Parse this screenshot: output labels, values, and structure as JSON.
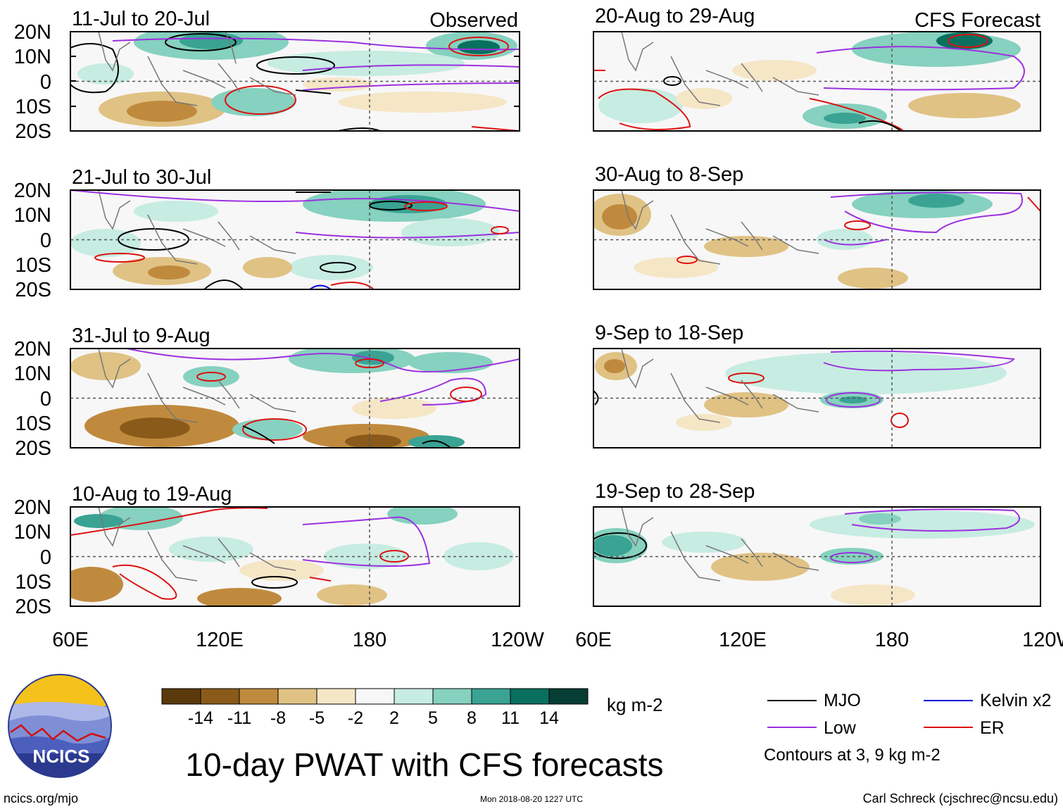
{
  "chart_data": {
    "type": "heatmap",
    "title": "10-day PWAT with CFS forecasts",
    "units": "kg m-2",
    "column_labels": {
      "left": "Observed",
      "right": "CFS Forecast"
    },
    "latitude_ticks": [
      "20N",
      "10N",
      "0",
      "10S",
      "20S"
    ],
    "latitude_values": [
      20,
      10,
      0,
      -10,
      -20
    ],
    "longitude_ticks": [
      "60E",
      "120E",
      "180",
      "120W"
    ],
    "longitude_values": [
      60,
      120,
      180,
      240
    ],
    "lon_range": [
      60,
      240
    ],
    "lat_range": [
      -20,
      20
    ],
    "panels": {
      "observed": [
        {
          "period": "11-Jul to 20-Jul",
          "corner_label": "Observed"
        },
        {
          "period": "21-Jul to 30-Jul"
        },
        {
          "period": "31-Jul to 9-Aug"
        },
        {
          "period": "10-Aug to 19-Aug"
        }
      ],
      "forecast": [
        {
          "period": "20-Aug to 29-Aug",
          "corner_label": "CFS Forecast"
        },
        {
          "period": "30-Aug to 8-Sep"
        },
        {
          "period": "9-Sep to 18-Sep"
        },
        {
          "period": "19-Sep to 28-Sep"
        }
      ]
    },
    "colorbar": {
      "levels": [
        "-14",
        "-11",
        "-8",
        "-5",
        "-2",
        "2",
        "5",
        "8",
        "11",
        "14"
      ],
      "colors": [
        "#5a3a0c",
        "#8a5a1a",
        "#c08a3e",
        "#e0c284",
        "#f5e6c6",
        "#f7f7f7",
        "#c7ece1",
        "#86d1bf",
        "#3aa393",
        "#09705f",
        "#063e35"
      ]
    },
    "legend": {
      "items": [
        {
          "label": "MJO",
          "color": "#000000"
        },
        {
          "label": "Kelvin x2",
          "color": "#0000dd"
        },
        {
          "label": "Low",
          "color": "#9b30e0"
        },
        {
          "label": "ER",
          "color": "#dd1111"
        }
      ],
      "note": "Contours at 3, 9 kg m-2"
    }
  },
  "footer": {
    "logo_text": "NCICS",
    "url": "ncics.org/mjo",
    "timestamp": "Mon 2018-08-20 1227 UTC",
    "credit": "Carl Schreck (cjschrec@ncsu.edu)"
  }
}
